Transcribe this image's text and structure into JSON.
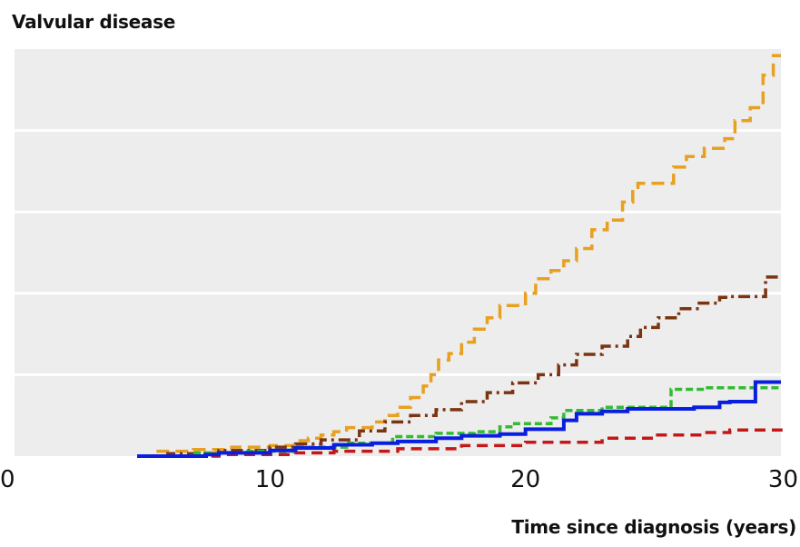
{
  "chart_data": {
    "type": "line",
    "title": "Valvular disease",
    "xlabel": "Time since diagnosis (years)",
    "ylabel": "",
    "xlim": [
      0,
      30
    ],
    "ylim": [
      0,
      5
    ],
    "x_ticks": [
      "0",
      "10",
      "20",
      "30"
    ],
    "y_gridlines": [
      1,
      2,
      3,
      4
    ],
    "grid": true,
    "series": [
      {
        "color": "#e8a020",
        "style": "long-dash",
        "points": [
          [
            5,
            0
          ],
          [
            5.5,
            0.06
          ],
          [
            7,
            0.08
          ],
          [
            8.5,
            0.11
          ],
          [
            10,
            0.13
          ],
          [
            11,
            0.19
          ],
          [
            11.5,
            0.22
          ],
          [
            12,
            0.26
          ],
          [
            12.5,
            0.3
          ],
          [
            13,
            0.35
          ],
          [
            14,
            0.42
          ],
          [
            14.5,
            0.5
          ],
          [
            15,
            0.6
          ],
          [
            15.5,
            0.72
          ],
          [
            16,
            0.86
          ],
          [
            16.3,
            1.0
          ],
          [
            16.6,
            1.18
          ],
          [
            17,
            1.26
          ],
          [
            17.5,
            1.4
          ],
          [
            18,
            1.56
          ],
          [
            18.5,
            1.7
          ],
          [
            19,
            1.85
          ],
          [
            20,
            2.0
          ],
          [
            20.4,
            2.18
          ],
          [
            21,
            2.28
          ],
          [
            21.5,
            2.4
          ],
          [
            22,
            2.55
          ],
          [
            22.6,
            2.78
          ],
          [
            23.2,
            2.9
          ],
          [
            23.8,
            3.12
          ],
          [
            24.2,
            3.3
          ],
          [
            24.4,
            3.35
          ],
          [
            25.8,
            3.55
          ],
          [
            26.3,
            3.68
          ],
          [
            27,
            3.78
          ],
          [
            27.8,
            3.9
          ],
          [
            28.2,
            4.12
          ],
          [
            28.8,
            4.28
          ],
          [
            29.3,
            4.68
          ],
          [
            29.7,
            4.92
          ],
          [
            30,
            4.92
          ]
        ]
      },
      {
        "color": "#7a3410",
        "style": "dash-dot",
        "points": [
          [
            5,
            0
          ],
          [
            6,
            0.03
          ],
          [
            8,
            0.07
          ],
          [
            10,
            0.11
          ],
          [
            11,
            0.15
          ],
          [
            12,
            0.2
          ],
          [
            13.5,
            0.31
          ],
          [
            14.5,
            0.42
          ],
          [
            15.5,
            0.5
          ],
          [
            16.5,
            0.57
          ],
          [
            17.5,
            0.67
          ],
          [
            18.5,
            0.78
          ],
          [
            19.5,
            0.9
          ],
          [
            20.5,
            1.0
          ],
          [
            21.3,
            1.12
          ],
          [
            22,
            1.25
          ],
          [
            23,
            1.35
          ],
          [
            24,
            1.47
          ],
          [
            24.5,
            1.58
          ],
          [
            25.2,
            1.7
          ],
          [
            26,
            1.81
          ],
          [
            26.8,
            1.88
          ],
          [
            27.6,
            1.95
          ],
          [
            28,
            1.96
          ],
          [
            29,
            1.96
          ],
          [
            29.4,
            2.2
          ],
          [
            30,
            2.2
          ]
        ]
      },
      {
        "color": "#33bb33",
        "style": "short-dash",
        "points": [
          [
            5,
            0
          ],
          [
            7,
            0.04
          ],
          [
            9,
            0.06
          ],
          [
            11,
            0.11
          ],
          [
            13,
            0.16
          ],
          [
            14.8,
            0.24
          ],
          [
            16.5,
            0.28
          ],
          [
            18,
            0.3
          ],
          [
            19,
            0.36
          ],
          [
            19.5,
            0.4
          ],
          [
            21,
            0.47
          ],
          [
            21.5,
            0.56
          ],
          [
            23,
            0.6
          ],
          [
            25.5,
            0.6
          ],
          [
            25.7,
            0.82
          ],
          [
            27,
            0.84
          ],
          [
            30,
            0.84
          ]
        ]
      },
      {
        "color": "#c41818",
        "style": "dash",
        "points": [
          [
            5,
            0
          ],
          [
            8,
            0.02
          ],
          [
            11,
            0.04
          ],
          [
            12.5,
            0.06
          ],
          [
            15,
            0.09
          ],
          [
            17.5,
            0.13
          ],
          [
            20,
            0.17
          ],
          [
            23,
            0.22
          ],
          [
            25,
            0.26
          ],
          [
            27,
            0.29
          ],
          [
            28,
            0.32
          ],
          [
            30,
            0.34
          ]
        ]
      },
      {
        "color": "#0a1ee0",
        "style": "solid",
        "points": [
          [
            4.8,
            0
          ],
          [
            7.5,
            0.02
          ],
          [
            8,
            0.04
          ],
          [
            10,
            0.07
          ],
          [
            11,
            0.1
          ],
          [
            12.5,
            0.14
          ],
          [
            14,
            0.16
          ],
          [
            15,
            0.18
          ],
          [
            16.5,
            0.22
          ],
          [
            17.5,
            0.25
          ],
          [
            19,
            0.27
          ],
          [
            20,
            0.33
          ],
          [
            21.5,
            0.44
          ],
          [
            22,
            0.52
          ],
          [
            23,
            0.55
          ],
          [
            24,
            0.58
          ],
          [
            26,
            0.58
          ],
          [
            26.6,
            0.6
          ],
          [
            27.5,
            0.6
          ],
          [
            27.6,
            0.66
          ],
          [
            28,
            0.67
          ],
          [
            28.9,
            0.67
          ],
          [
            29,
            0.91
          ],
          [
            30,
            0.91
          ]
        ]
      }
    ]
  }
}
